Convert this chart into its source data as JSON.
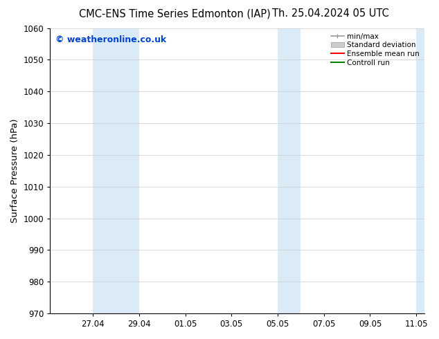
{
  "title_left": "CMC-ENS Time Series Edmonton (IAP)",
  "title_right": "Th. 25.04.2024 05 UTC",
  "ylabel": "Surface Pressure (hPa)",
  "ylim": [
    970,
    1060
  ],
  "yticks": [
    970,
    980,
    990,
    1000,
    1010,
    1020,
    1030,
    1040,
    1050,
    1060
  ],
  "xtick_labels": [
    "27.04",
    "29.04",
    "01.05",
    "03.05",
    "05.05",
    "07.05",
    "09.05",
    "11.05"
  ],
  "shaded_color": "#dbeaf7",
  "watermark": "© weatheronline.co.uk",
  "watermark_color": "#0044cc",
  "legend_labels": [
    "min/max",
    "Standard deviation",
    "Ensemble mean run",
    "Controll run"
  ],
  "legend_colors": [
    "#999999",
    "#cccccc",
    "#ff0000",
    "#008000"
  ],
  "bg_color": "#ffffff",
  "grid_color": "#cccccc",
  "title_fontsize": 10.5,
  "tick_fontsize": 8.5,
  "label_fontsize": 9.5,
  "watermark_fontsize": 9
}
